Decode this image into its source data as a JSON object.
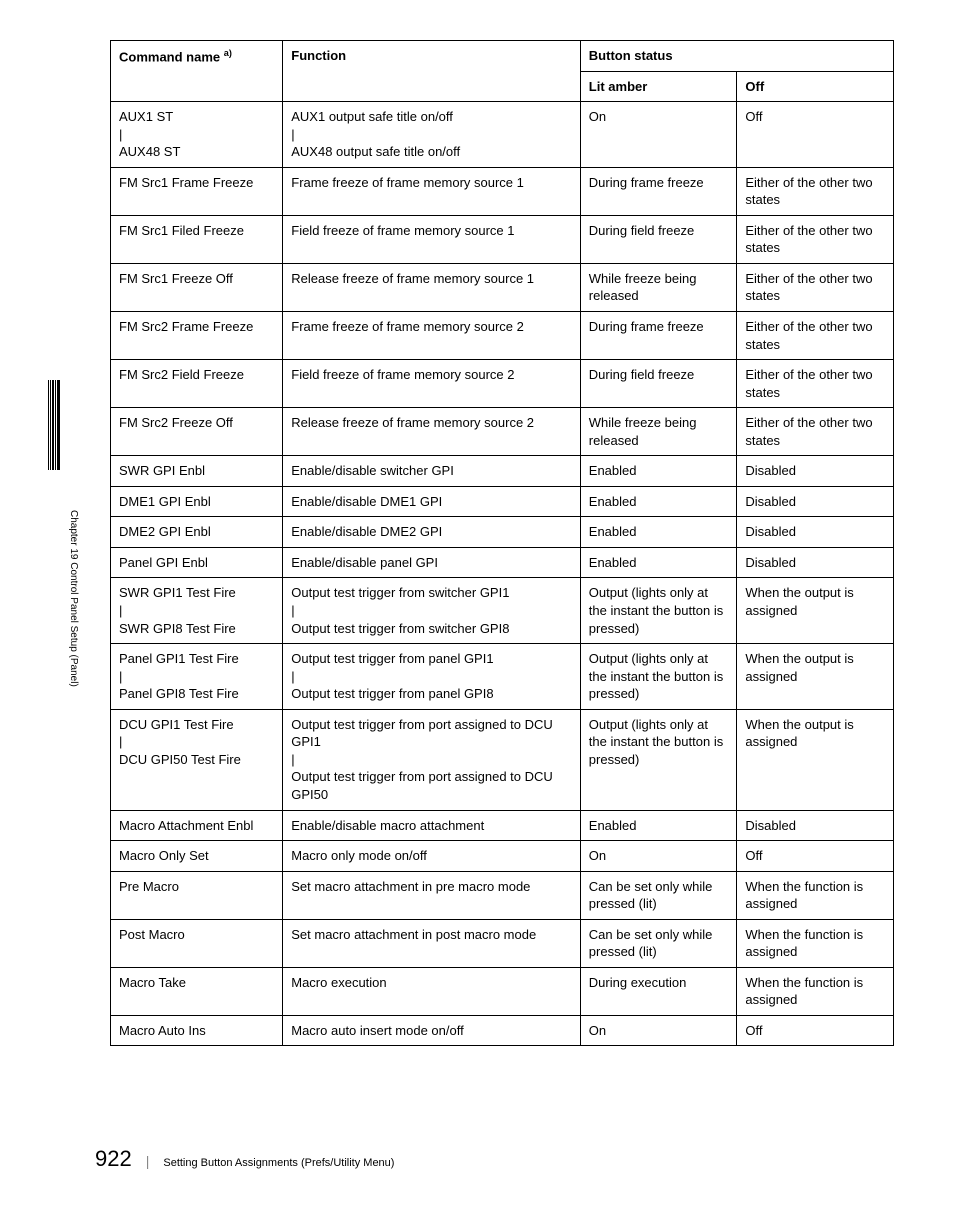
{
  "sidebar": {
    "chapter_label": "Chapter 19  Control Panel Setup (Panel)"
  },
  "table": {
    "header": {
      "command_name": "Command name",
      "command_name_sup": "a)",
      "function": "Function",
      "button_status": "Button status",
      "lit_amber": "Lit amber",
      "off": "Off"
    },
    "rows": [
      {
        "cmd": "AUX1 ST\n    |\nAUX48 ST",
        "fn": "AUX1 output safe title on/off\n    |\nAUX48 output safe title on/off",
        "lit": "On",
        "off": "Off"
      },
      {
        "cmd": "FM Src1 Frame Freeze",
        "fn": "Frame freeze of frame memory source 1",
        "lit": "During frame freeze",
        "off": "Either of the other two states"
      },
      {
        "cmd": "FM Src1 Filed Freeze",
        "fn": "Field freeze of frame memory source 1",
        "lit": "During field freeze",
        "off": "Either of the other two states"
      },
      {
        "cmd": "FM Src1 Freeze Off",
        "fn": "Release freeze of frame memory source 1",
        "lit": "While freeze being released",
        "off": "Either of the other two states"
      },
      {
        "cmd": "FM Src2 Frame Freeze",
        "fn": "Frame freeze of frame memory source 2",
        "lit": "During frame freeze",
        "off": "Either of the other two states"
      },
      {
        "cmd": "FM Src2 Field Freeze",
        "fn": "Field freeze of frame memory source 2",
        "lit": "During field freeze",
        "off": "Either of the other two states"
      },
      {
        "cmd": "FM Src2 Freeze Off",
        "fn": "Release freeze of frame memory source 2",
        "lit": "While freeze being released",
        "off": "Either of the other two states"
      },
      {
        "cmd": "SWR GPI Enbl",
        "fn": "Enable/disable switcher GPI",
        "lit": "Enabled",
        "off": "Disabled"
      },
      {
        "cmd": "DME1 GPI Enbl",
        "fn": "Enable/disable DME1 GPI",
        "lit": "Enabled",
        "off": "Disabled"
      },
      {
        "cmd": "DME2 GPI Enbl",
        "fn": "Enable/disable DME2 GPI",
        "lit": "Enabled",
        "off": "Disabled"
      },
      {
        "cmd": "Panel GPI Enbl",
        "fn": "Enable/disable panel GPI",
        "lit": "Enabled",
        "off": "Disabled"
      },
      {
        "cmd": "SWR GPI1 Test Fire\n    |\nSWR GPI8 Test Fire",
        "fn": "Output test trigger from switcher GPI1\n    |\nOutput test trigger from switcher GPI8",
        "lit": "Output (lights only at the instant the button is pressed)",
        "off": "When the output is assigned"
      },
      {
        "cmd": "Panel GPI1 Test Fire\n    |\nPanel GPI8 Test Fire",
        "fn": "Output test trigger from panel GPI1\n    |\nOutput test trigger from panel GPI8",
        "lit": "Output (lights only at the instant the button is pressed)",
        "off": "When the output is assigned"
      },
      {
        "cmd": "DCU GPI1 Test Fire\n    |\nDCU GPI50 Test Fire",
        "fn": "Output test trigger from port assigned to DCU GPI1\n    |\nOutput test trigger from port assigned to DCU GPI50",
        "lit": "Output (lights only at the instant the button is pressed)",
        "off": "When the output is assigned"
      },
      {
        "cmd": "Macro Attachment Enbl",
        "fn": "Enable/disable macro attachment",
        "lit": "Enabled",
        "off": "Disabled"
      },
      {
        "cmd": "Macro Only Set",
        "fn": "Macro only mode on/off",
        "lit": "On",
        "off": "Off"
      },
      {
        "cmd": "Pre Macro",
        "fn": "Set macro attachment in pre macro mode",
        "lit": "Can be set only while pressed (lit)",
        "off": "When the function is assigned"
      },
      {
        "cmd": "Post Macro",
        "fn": "Set macro attachment in post macro mode",
        "lit": "Can be set only while pressed (lit)",
        "off": "When the function is assigned"
      },
      {
        "cmd": "Macro Take",
        "fn": "Macro execution",
        "lit": "During execution",
        "off": "When the function is assigned"
      },
      {
        "cmd": "Macro Auto Ins",
        "fn": "Macro auto insert mode on/off",
        "lit": "On",
        "off": "Off"
      }
    ]
  },
  "footer": {
    "page_number": "922",
    "section_title": "Setting Button Assignments (Prefs/Utility Menu)"
  }
}
